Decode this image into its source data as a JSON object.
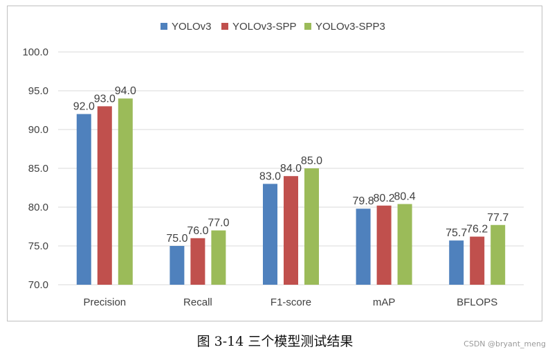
{
  "caption": "图 3-14  三个模型测试结果",
  "watermark": "CSDN @bryant_meng",
  "chart_data": {
    "type": "bar",
    "categories": [
      "Precision",
      "Recall",
      "F1-score",
      "mAP",
      "BFLOPS"
    ],
    "series": [
      {
        "name": "YOLOv3",
        "color": "#4f81bd",
        "values": [
          92.0,
          75.0,
          83.0,
          79.8,
          75.7
        ]
      },
      {
        "name": "YOLOv3-SPP",
        "color": "#c0504d",
        "values": [
          93.0,
          76.0,
          84.0,
          80.2,
          76.2
        ]
      },
      {
        "name": "YOLOv3-SPP3",
        "color": "#9bbb59",
        "values": [
          94.0,
          77.0,
          85.0,
          80.4,
          77.7
        ]
      }
    ],
    "ylim": [
      70,
      100
    ],
    "yticks": [
      "70.0",
      "75.0",
      "80.0",
      "85.0",
      "90.0",
      "95.0",
      "100.0"
    ],
    "grid": true,
    "legend": "top-center",
    "data_labels": true,
    "title": "",
    "xlabel": "",
    "ylabel": ""
  }
}
